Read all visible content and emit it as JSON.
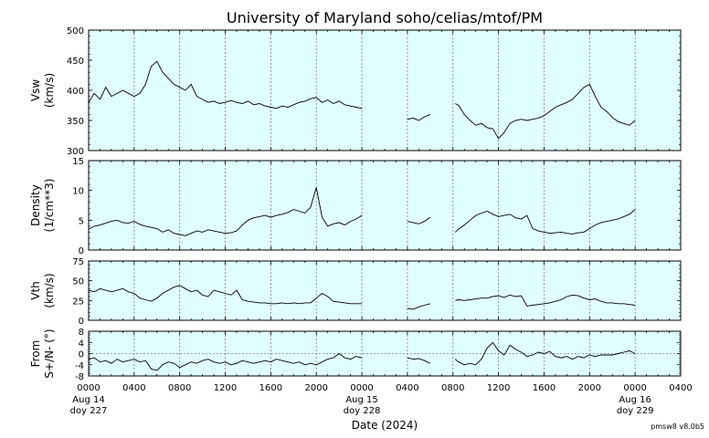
{
  "title": "University of Maryland  soho/celias/mtof/PM",
  "footer_version": "pmsw8 v8.0b5",
  "colors": {
    "panel_bg": "#e0ffff",
    "line": "#000000",
    "grid": "#808080"
  },
  "x_axis": {
    "label": "Date (2024)",
    "tick_labels": [
      "0000",
      "0400",
      "0800",
      "1200",
      "1600",
      "2000",
      "0000",
      "0400",
      "0800",
      "1200",
      "1600",
      "2000",
      "0000",
      "0400"
    ],
    "day_labels": [
      {
        "date": "Aug 14",
        "doy": "doy 227"
      },
      {
        "date": "Aug 15",
        "doy": "doy 228"
      },
      {
        "date": "Aug 16",
        "doy": "doy 229"
      }
    ]
  },
  "chart_data": [
    {
      "type": "line",
      "ylabel_line1": "Vsw",
      "ylabel_line2": "(km/s)",
      "ylim": [
        300,
        500
      ],
      "yticks": [
        300,
        350,
        400,
        450,
        500
      ],
      "ytick_labels": [
        "300",
        "350",
        "400",
        "450",
        "500"
      ],
      "xlim_hours": [
        0,
        52
      ],
      "grid": "vertical dotted",
      "series": [
        {
          "x": [
            0,
            0.5,
            1,
            1.5,
            2,
            2.5,
            3,
            3.5,
            4,
            4.5,
            5,
            5.5,
            6,
            6.5,
            7,
            7.5,
            8,
            8.5,
            9,
            9.5,
            10,
            10.5,
            11,
            11.5,
            12,
            12.5,
            13,
            13.5,
            14,
            14.5,
            15,
            15.5,
            16,
            16.5,
            17,
            17.5,
            18,
            18.5,
            19,
            19.5,
            20,
            20.5,
            21,
            21.5,
            22,
            22.5,
            23,
            23.5,
            24
          ],
          "y": [
            380,
            395,
            385,
            405,
            390,
            395,
            400,
            395,
            390,
            395,
            410,
            440,
            448,
            430,
            420,
            410,
            405,
            400,
            410,
            390,
            385,
            380,
            382,
            378,
            380,
            383,
            380,
            378,
            382,
            376,
            378,
            374,
            372,
            370,
            374,
            372,
            376,
            380,
            382,
            386,
            388,
            380,
            384,
            378,
            382,
            376,
            374,
            372,
            370
          ]
        },
        {
          "x": [
            28,
            28.5,
            29,
            29.5,
            30
          ],
          "y": [
            352,
            354,
            350,
            356,
            360
          ]
        },
        {
          "x": [
            32.2,
            32.5,
            33,
            33.5,
            34,
            34.5,
            35,
            35.5,
            36,
            36.5,
            37,
            37.5,
            38,
            38.5,
            39,
            39.5,
            40,
            40.5,
            41,
            41.5,
            42,
            42.5,
            43,
            43.5,
            44,
            44.5,
            45,
            45.5,
            46,
            46.5,
            47,
            47.5,
            48
          ],
          "y": [
            378,
            375,
            360,
            350,
            342,
            345,
            338,
            336,
            320,
            330,
            345,
            350,
            352,
            350,
            352,
            354,
            358,
            365,
            372,
            376,
            380,
            385,
            395,
            405,
            410,
            390,
            372,
            365,
            355,
            348,
            345,
            342,
            350
          ]
        }
      ]
    },
    {
      "type": "line",
      "ylabel_line1": "Density",
      "ylabel_line2": "(1/cm**3)",
      "ylim": [
        0,
        15
      ],
      "yticks": [
        0,
        5,
        10,
        15
      ],
      "ytick_labels": [
        "0",
        "5",
        "10",
        "15"
      ],
      "xlim_hours": [
        0,
        52
      ],
      "grid": "vertical dotted",
      "series": [
        {
          "x": [
            0,
            0.5,
            1,
            1.5,
            2,
            2.5,
            3,
            3.5,
            4,
            4.5,
            5,
            5.5,
            6,
            6.5,
            7,
            7.5,
            8,
            8.5,
            9,
            9.5,
            10,
            10.5,
            11,
            11.5,
            12,
            12.5,
            13,
            13.5,
            14,
            14.5,
            15,
            15.5,
            16,
            16.5,
            17,
            17.5,
            18,
            18.5,
            19,
            19.5,
            20,
            20.5,
            21,
            21.5,
            22,
            22.5,
            23,
            23.5,
            24
          ],
          "y": [
            3.5,
            4.0,
            4.2,
            4.5,
            4.8,
            5.0,
            4.6,
            4.5,
            4.8,
            4.3,
            4.0,
            3.8,
            3.6,
            3.0,
            3.4,
            2.8,
            2.6,
            2.4,
            2.8,
            3.2,
            3.0,
            3.4,
            3.2,
            3.0,
            2.8,
            2.9,
            3.2,
            4.2,
            5.0,
            5.4,
            5.6,
            5.8,
            5.5,
            5.8,
            6.0,
            6.3,
            6.8,
            6.5,
            6.2,
            7.2,
            10.5,
            5.5,
            4.0,
            4.4,
            4.6,
            4.2,
            4.8,
            5.2,
            5.8
          ]
        },
        {
          "x": [
            28,
            28.5,
            29,
            29.5,
            30
          ],
          "y": [
            4.8,
            4.6,
            4.4,
            4.8,
            5.5
          ]
        },
        {
          "x": [
            32.2,
            32.5,
            33,
            33.5,
            34,
            34.5,
            35,
            35.5,
            36,
            36.5,
            37,
            37.5,
            38,
            38.5,
            39,
            39.5,
            40,
            40.5,
            41,
            41.5,
            42,
            42.5,
            43,
            43.5,
            44,
            44.5,
            45,
            45.5,
            46,
            46.5,
            47,
            47.5,
            48
          ],
          "y": [
            3.0,
            3.5,
            4.2,
            5.0,
            5.8,
            6.2,
            6.5,
            6.0,
            5.6,
            5.8,
            6.0,
            5.4,
            5.2,
            5.8,
            3.6,
            3.2,
            3.0,
            2.8,
            2.9,
            3.0,
            2.8,
            2.7,
            2.9,
            3.0,
            3.6,
            4.2,
            4.6,
            4.8,
            5.0,
            5.2,
            5.6,
            6.0,
            6.8
          ]
        }
      ]
    },
    {
      "type": "line",
      "ylabel_line1": "Vth",
      "ylabel_line2": "(km/s)",
      "ylim": [
        0,
        75
      ],
      "yticks": [
        0,
        25,
        50,
        75
      ],
      "ytick_labels": [
        "0",
        "25",
        "50",
        "75"
      ],
      "xlim_hours": [
        0,
        52
      ],
      "grid": "vertical dotted",
      "series": [
        {
          "x": [
            0,
            0.5,
            1,
            1.5,
            2,
            2.5,
            3,
            3.5,
            4,
            4.5,
            5,
            5.5,
            6,
            6.5,
            7,
            7.5,
            8,
            8.5,
            9,
            9.5,
            10,
            10.5,
            11,
            11.5,
            12,
            12.5,
            13,
            13.5,
            14,
            14.5,
            15,
            15.5,
            16,
            16.5,
            17,
            17.5,
            18,
            18.5,
            19,
            19.5,
            20,
            20.5,
            21,
            21.5,
            22,
            22.5,
            23,
            23.5,
            24
          ],
          "y": [
            38,
            36,
            40,
            38,
            36,
            38,
            40,
            36,
            34,
            28,
            26,
            24,
            28,
            34,
            38,
            42,
            44,
            40,
            36,
            38,
            32,
            30,
            38,
            36,
            34,
            32,
            38,
            26,
            24,
            23,
            22,
            22,
            21,
            21,
            22,
            21,
            22,
            21,
            22,
            22,
            28,
            34,
            30,
            24,
            23,
            22,
            21,
            21,
            21
          ]
        },
        {
          "x": [
            28,
            28.5,
            29,
            29.5,
            30
          ],
          "y": [
            15,
            14,
            17,
            19,
            21
          ]
        },
        {
          "x": [
            32.2,
            32.5,
            33,
            33.5,
            34,
            34.5,
            35,
            35.5,
            36,
            36.5,
            37,
            37.5,
            38,
            38.5,
            39,
            39.5,
            40,
            40.5,
            41,
            41.5,
            42,
            42.5,
            43,
            43.5,
            44,
            44.5,
            45,
            45.5,
            46,
            46.5,
            47,
            47.5,
            48
          ],
          "y": [
            25,
            26,
            25,
            26,
            27,
            28,
            28,
            30,
            31,
            29,
            32,
            30,
            31,
            18,
            19,
            20,
            21,
            22,
            24,
            26,
            30,
            32,
            31,
            28,
            26,
            27,
            24,
            22,
            22,
            21,
            21,
            20,
            19
          ]
        }
      ]
    },
    {
      "type": "line",
      "ylabel_line1": "From",
      "ylabel_line2": "S+/N- (°)",
      "ylim": [
        -8,
        8
      ],
      "yticks": [
        -8,
        -4,
        0,
        4,
        8
      ],
      "ytick_labels": [
        "-8",
        "-4",
        "0",
        "4",
        "8"
      ],
      "zero_line": true,
      "xlim_hours": [
        0,
        52
      ],
      "grid": "vertical dotted",
      "series": [
        {
          "x": [
            0,
            0.5,
            1,
            1.5,
            2,
            2.5,
            3,
            3.5,
            4,
            4.5,
            5,
            5.5,
            6,
            6.5,
            7,
            7.5,
            8,
            8.5,
            9,
            9.5,
            10,
            10.5,
            11,
            11.5,
            12,
            12.5,
            13,
            13.5,
            14,
            14.5,
            15,
            15.5,
            16,
            16.5,
            17,
            17.5,
            18,
            18.5,
            19,
            19.5,
            20,
            20.5,
            21,
            21.5,
            22,
            22.5,
            23,
            23.5,
            24
          ],
          "y": [
            -2,
            -1.5,
            -3,
            -2.5,
            -3.5,
            -2,
            -3,
            -2.5,
            -2,
            -3,
            -2.5,
            -5.5,
            -6,
            -4,
            -3,
            -3.5,
            -5,
            -4,
            -3,
            -3.5,
            -2.5,
            -2,
            -3,
            -3.5,
            -3,
            -4,
            -3.5,
            -2.5,
            -3,
            -3.5,
            -3,
            -2.5,
            -3,
            -2,
            -2.5,
            -3,
            -3.5,
            -3,
            -4,
            -3.5,
            -4,
            -3,
            -2,
            -1.5,
            0,
            -1.5,
            -2,
            -1,
            -1.5
          ]
        },
        {
          "x": [
            28,
            28.5,
            29,
            29.5,
            30
          ],
          "y": [
            -1.5,
            -2,
            -1.8,
            -2.5,
            -3.5
          ]
        },
        {
          "x": [
            32.2,
            32.5,
            33,
            33.5,
            34,
            34.5,
            35,
            35.5,
            36,
            36.5,
            37,
            37.5,
            38,
            38.5,
            39,
            39.5,
            40,
            40.5,
            41,
            41.5,
            42,
            42.5,
            43,
            43.5,
            44,
            44.5,
            45,
            45.5,
            46,
            46.5,
            47,
            47.5,
            48
          ],
          "y": [
            -2,
            -3,
            -4,
            -3.5,
            -4,
            -2,
            2,
            4,
            1,
            -0.5,
            3,
            1.5,
            0.5,
            -1,
            -0.5,
            0.5,
            0,
            0.8,
            -1,
            -1.5,
            -1,
            -2,
            -1,
            -1.5,
            -0.5,
            -1,
            -0.5,
            -0.5,
            -0.5,
            0,
            0.5,
            1,
            0
          ]
        }
      ]
    }
  ]
}
